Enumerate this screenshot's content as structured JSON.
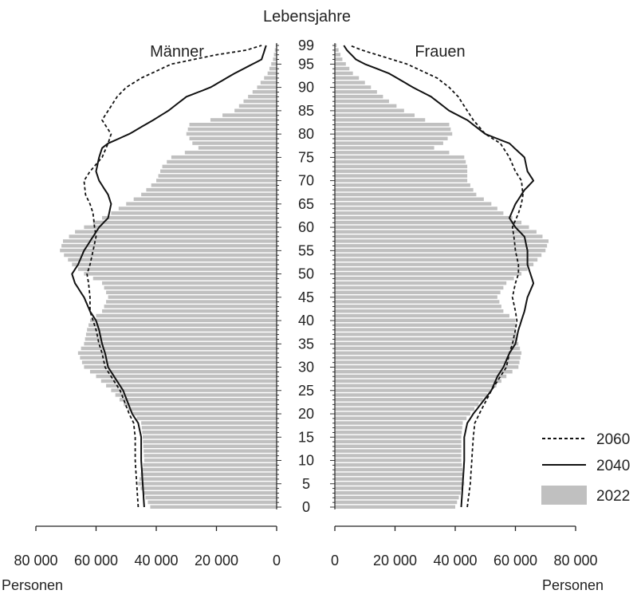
{
  "chart_data": {
    "type": "bar",
    "orientation": "horizontal",
    "layout": "population-pyramid",
    "y_axis_title": "Lebensjahre",
    "x_unit_label_left": "Personen",
    "x_unit_label_right": "Personen",
    "panels": [
      {
        "side": "left",
        "title": "Männer"
      },
      {
        "side": "right",
        "title": "Frauen"
      }
    ],
    "age_range": [
      0,
      99
    ],
    "age_ticks": [
      "0",
      "5",
      "10",
      "15",
      "20",
      "25",
      "30",
      "35",
      "40",
      "45",
      "50",
      "55",
      "60",
      "65",
      "70",
      "75",
      "80",
      "85",
      "90",
      "95",
      "99"
    ],
    "x_ticks_left": [
      "80 000",
      "60 000",
      "40 000",
      "20 000",
      "0"
    ],
    "x_ticks_right": [
      "0",
      "20 000",
      "40 000",
      "60 000",
      "80 000"
    ],
    "xlim": [
      0,
      80000
    ],
    "legend": {
      "position": "bottom-right",
      "entries": [
        {
          "label": "2060",
          "style": "dashed"
        },
        {
          "label": "2040",
          "style": "solid"
        },
        {
          "label": "2022",
          "style": "bar"
        }
      ]
    },
    "colors": {
      "bars": "#c0c0c0",
      "lines": "#111111"
    },
    "series": [
      {
        "name": "2022",
        "sex": "Männer",
        "points": [
          [
            0,
            42000
          ],
          [
            5,
            46000
          ],
          [
            10,
            44000
          ],
          [
            15,
            44500
          ],
          [
            18,
            45000
          ],
          [
            20,
            48000
          ],
          [
            25,
            55000
          ],
          [
            28,
            60000
          ],
          [
            30,
            64000
          ],
          [
            33,
            66000
          ],
          [
            35,
            64000
          ],
          [
            38,
            63000
          ],
          [
            40,
            62000
          ],
          [
            42,
            58000
          ],
          [
            45,
            56000
          ],
          [
            48,
            58000
          ],
          [
            50,
            64000
          ],
          [
            52,
            68000
          ],
          [
            55,
            72000
          ],
          [
            57,
            71000
          ],
          [
            59,
            67000
          ],
          [
            61,
            61000
          ],
          [
            63,
            55000
          ],
          [
            65,
            50000
          ],
          [
            67,
            45000
          ],
          [
            70,
            40000
          ],
          [
            73,
            38000
          ],
          [
            75,
            35000
          ],
          [
            77,
            26000
          ],
          [
            78,
            28000
          ],
          [
            80,
            30000
          ],
          [
            82,
            29000
          ],
          [
            83,
            22000
          ],
          [
            85,
            14000
          ],
          [
            87,
            11000
          ],
          [
            90,
            6500
          ],
          [
            93,
            3000
          ],
          [
            96,
            1200
          ],
          [
            99,
            300
          ]
        ]
      },
      {
        "name": "2022",
        "sex": "Frauen",
        "points": [
          [
            0,
            40000
          ],
          [
            5,
            43000
          ],
          [
            10,
            42000
          ],
          [
            15,
            42000
          ],
          [
            18,
            42500
          ],
          [
            20,
            45000
          ],
          [
            25,
            52000
          ],
          [
            28,
            57000
          ],
          [
            30,
            61000
          ],
          [
            33,
            62000
          ],
          [
            35,
            61000
          ],
          [
            38,
            60000
          ],
          [
            40,
            60000
          ],
          [
            42,
            56000
          ],
          [
            45,
            54000
          ],
          [
            48,
            57000
          ],
          [
            50,
            62000
          ],
          [
            52,
            66000
          ],
          [
            55,
            70000
          ],
          [
            57,
            71000
          ],
          [
            59,
            67000
          ],
          [
            61,
            62000
          ],
          [
            63,
            56000
          ],
          [
            65,
            52000
          ],
          [
            67,
            47000
          ],
          [
            70,
            44000
          ],
          [
            73,
            44000
          ],
          [
            75,
            43000
          ],
          [
            77,
            33000
          ],
          [
            78,
            36000
          ],
          [
            80,
            39000
          ],
          [
            82,
            38000
          ],
          [
            83,
            30000
          ],
          [
            85,
            23000
          ],
          [
            87,
            18000
          ],
          [
            90,
            12000
          ],
          [
            93,
            6000
          ],
          [
            96,
            2500
          ],
          [
            99,
            600
          ]
        ]
      },
      {
        "name": "2040",
        "sex": "Männer",
        "points": [
          [
            0,
            44000
          ],
          [
            5,
            44500
          ],
          [
            10,
            45000
          ],
          [
            15,
            45000
          ],
          [
            18,
            46000
          ],
          [
            20,
            48000
          ],
          [
            25,
            51000
          ],
          [
            28,
            54000
          ],
          [
            30,
            56000
          ],
          [
            33,
            57000
          ],
          [
            35,
            58000
          ],
          [
            38,
            59000
          ],
          [
            40,
            60000
          ],
          [
            42,
            62000
          ],
          [
            45,
            64000
          ],
          [
            48,
            67000
          ],
          [
            50,
            68000
          ],
          [
            52,
            66000
          ],
          [
            55,
            64000
          ],
          [
            58,
            61000
          ],
          [
            60,
            59000
          ],
          [
            62,
            56000
          ],
          [
            65,
            55000
          ],
          [
            67,
            56000
          ],
          [
            70,
            59000
          ],
          [
            72,
            60000
          ],
          [
            75,
            59000
          ],
          [
            77,
            58000
          ],
          [
            78,
            56000
          ],
          [
            80,
            49000
          ],
          [
            83,
            41000
          ],
          [
            85,
            36000
          ],
          [
            88,
            30000
          ],
          [
            90,
            22000
          ],
          [
            93,
            14000
          ],
          [
            95,
            8000
          ],
          [
            96,
            5000
          ],
          [
            98,
            4000
          ],
          [
            99,
            3500
          ]
        ]
      },
      {
        "name": "2040",
        "sex": "Frauen",
        "points": [
          [
            0,
            42000
          ],
          [
            5,
            42500
          ],
          [
            10,
            43000
          ],
          [
            15,
            43000
          ],
          [
            18,
            44000
          ],
          [
            20,
            46000
          ],
          [
            25,
            52000
          ],
          [
            28,
            54000
          ],
          [
            30,
            56000
          ],
          [
            33,
            58000
          ],
          [
            35,
            60000
          ],
          [
            38,
            61000
          ],
          [
            40,
            62000
          ],
          [
            42,
            63000
          ],
          [
            45,
            64000
          ],
          [
            48,
            66000
          ],
          [
            50,
            65000
          ],
          [
            52,
            64000
          ],
          [
            55,
            64000
          ],
          [
            58,
            63000
          ],
          [
            60,
            60000
          ],
          [
            62,
            58000
          ],
          [
            65,
            60000
          ],
          [
            68,
            63000
          ],
          [
            70,
            66000
          ],
          [
            72,
            64000
          ],
          [
            75,
            63000
          ],
          [
            78,
            58000
          ],
          [
            80,
            50000
          ],
          [
            83,
            44000
          ],
          [
            85,
            38000
          ],
          [
            88,
            32000
          ],
          [
            90,
            26000
          ],
          [
            93,
            18000
          ],
          [
            95,
            10000
          ],
          [
            96,
            7000
          ],
          [
            98,
            4000
          ],
          [
            99,
            3000
          ]
        ]
      },
      {
        "name": "2060",
        "sex": "Männer",
        "points": [
          [
            0,
            46000
          ],
          [
            5,
            46500
          ],
          [
            10,
            47000
          ],
          [
            15,
            47000
          ],
          [
            18,
            47500
          ],
          [
            20,
            49000
          ],
          [
            25,
            52000
          ],
          [
            28,
            55000
          ],
          [
            30,
            57000
          ],
          [
            33,
            58000
          ],
          [
            35,
            59000
          ],
          [
            38,
            60000
          ],
          [
            40,
            61000
          ],
          [
            42,
            62000
          ],
          [
            45,
            62000
          ],
          [
            48,
            62500
          ],
          [
            50,
            63000
          ],
          [
            52,
            62000
          ],
          [
            55,
            61000
          ],
          [
            58,
            60000
          ],
          [
            60,
            60500
          ],
          [
            63,
            61000
          ],
          [
            65,
            62000
          ],
          [
            67,
            63500
          ],
          [
            70,
            64000
          ],
          [
            72,
            62000
          ],
          [
            75,
            58000
          ],
          [
            78,
            56000
          ],
          [
            80,
            55000
          ],
          [
            83,
            58000
          ],
          [
            85,
            56000
          ],
          [
            88,
            53000
          ],
          [
            90,
            50000
          ],
          [
            92,
            45000
          ],
          [
            95,
            35000
          ],
          [
            97,
            20000
          ],
          [
            98,
            10000
          ],
          [
            99,
            5000
          ]
        ]
      },
      {
        "name": "2060",
        "sex": "Frauen",
        "points": [
          [
            0,
            44000
          ],
          [
            5,
            45000
          ],
          [
            10,
            45500
          ],
          [
            15,
            46000
          ],
          [
            18,
            46500
          ],
          [
            20,
            48000
          ],
          [
            25,
            52000
          ],
          [
            28,
            55000
          ],
          [
            30,
            57000
          ],
          [
            33,
            58000
          ],
          [
            35,
            59000
          ],
          [
            38,
            60000
          ],
          [
            40,
            60500
          ],
          [
            42,
            60000
          ],
          [
            45,
            59000
          ],
          [
            48,
            60000
          ],
          [
            50,
            61000
          ],
          [
            52,
            61000
          ],
          [
            55,
            60000
          ],
          [
            58,
            59500
          ],
          [
            60,
            59000
          ],
          [
            63,
            61000
          ],
          [
            65,
            62000
          ],
          [
            67,
            62500
          ],
          [
            70,
            62000
          ],
          [
            72,
            60000
          ],
          [
            75,
            58000
          ],
          [
            78,
            55000
          ],
          [
            80,
            50000
          ],
          [
            83,
            46000
          ],
          [
            85,
            44000
          ],
          [
            88,
            41000
          ],
          [
            90,
            38000
          ],
          [
            92,
            34000
          ],
          [
            95,
            24000
          ],
          [
            97,
            14000
          ],
          [
            98,
            9000
          ],
          [
            99,
            5000
          ]
        ]
      }
    ]
  }
}
